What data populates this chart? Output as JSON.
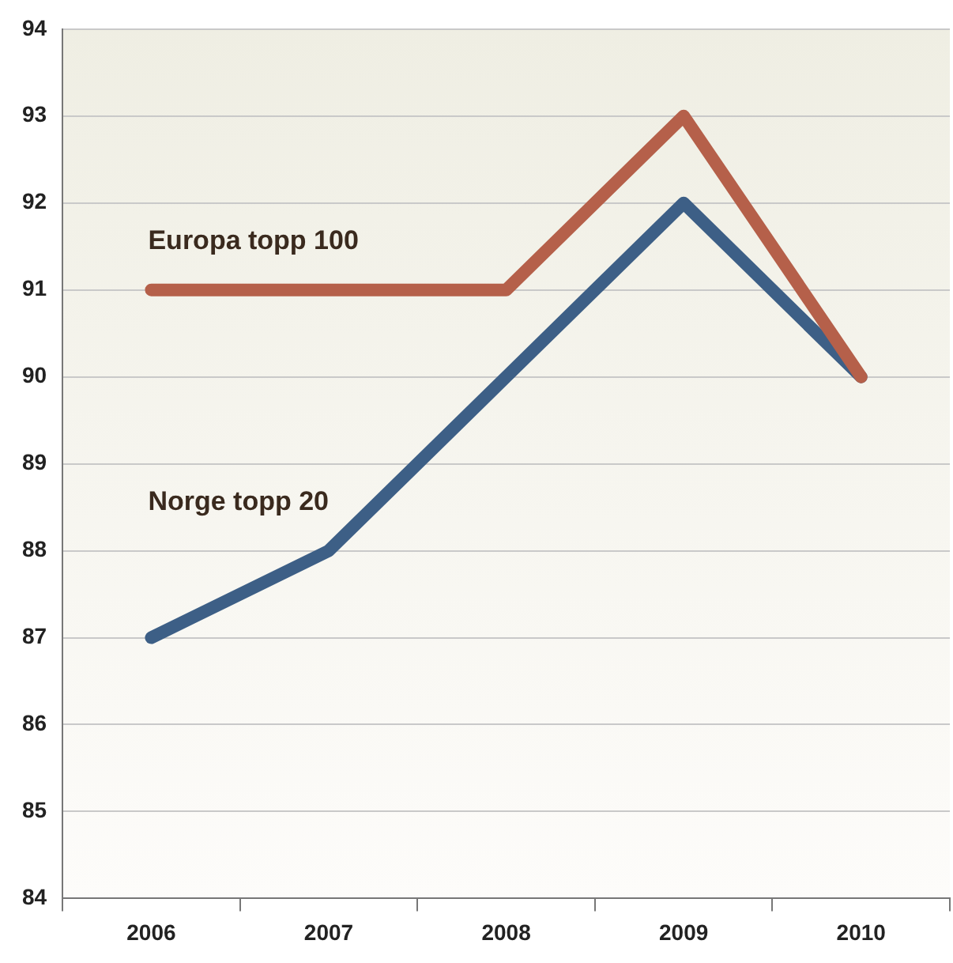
{
  "chart_data": {
    "type": "line",
    "categories": [
      "2006",
      "2007",
      "2008",
      "2009",
      "2010"
    ],
    "series": [
      {
        "name": "Europa topp 100",
        "color": "#b5604a",
        "values": [
          91,
          91,
          91,
          93,
          90
        ]
      },
      {
        "name": "Norge topp 20",
        "color": "#3d5f86",
        "values": [
          87,
          88,
          90,
          92,
          90
        ]
      }
    ],
    "ylim": [
      84,
      94
    ],
    "yticks": [
      84,
      85,
      86,
      87,
      88,
      89,
      90,
      91,
      92,
      93,
      94
    ],
    "grid": "y",
    "legend": false,
    "marker": "none",
    "line_style": "solid"
  }
}
